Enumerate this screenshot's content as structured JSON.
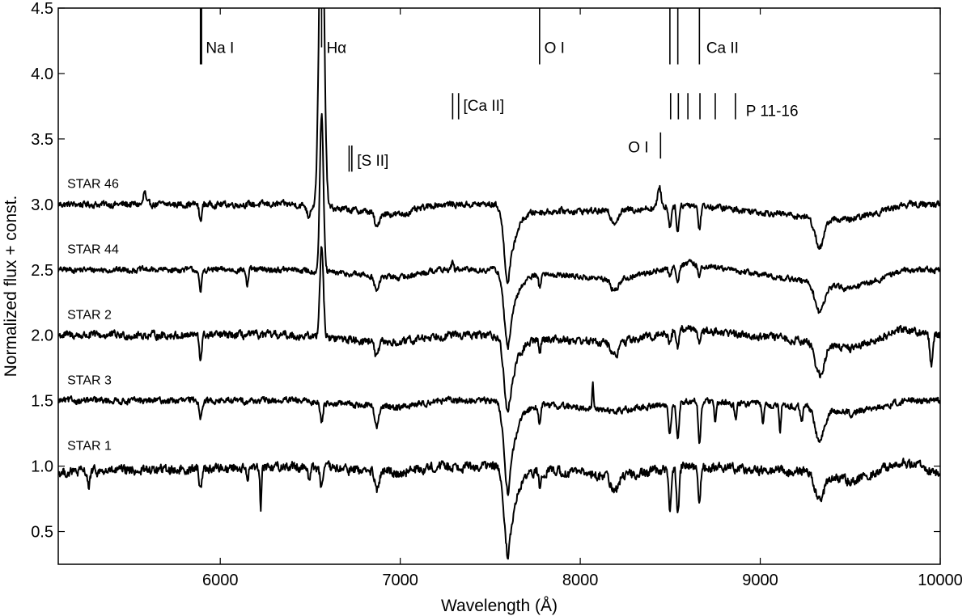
{
  "chart_data": {
    "type": "line",
    "xlabel": "Wavelength (Å)",
    "ylabel": "Normalized flux + const.",
    "xlim": [
      5100,
      10000
    ],
    "ylim": [
      0.25,
      4.5
    ],
    "x_ticks": [
      6000,
      7000,
      8000,
      9000,
      10000
    ],
    "y_ticks": [
      0.5,
      1.0,
      1.5,
      2.0,
      2.5,
      3.0,
      3.5,
      4.0,
      4.5
    ],
    "y_tick_labels": [
      "0.5",
      "1.0",
      "1.5",
      "2.0",
      "2.5",
      "3.0",
      "3.5",
      "4.0",
      "4.5"
    ],
    "grid": false,
    "line_color": "#000000",
    "series": [
      {
        "name": "STAR 46",
        "offset": 3.0,
        "features": [
          [
            5580,
            0.1,
            6
          ],
          [
            5890,
            -0.13,
            7
          ],
          [
            6490,
            -0.08,
            8
          ],
          [
            6563,
            2.6,
            14
          ],
          [
            6870,
            -0.12,
            12
          ],
          [
            7600,
            -0.6,
            22
          ],
          [
            8190,
            -0.08,
            20
          ],
          [
            8440,
            0.15,
            9
          ],
          [
            8498,
            -0.16,
            7
          ],
          [
            8542,
            -0.2,
            7
          ],
          [
            8662,
            -0.18,
            7
          ],
          [
            9330,
            -0.22,
            25
          ]
        ],
        "broad": [
          [
            5100,
            0.0
          ],
          [
            6400,
            0.0
          ],
          [
            7000,
            -0.08
          ],
          [
            7200,
            0.0
          ],
          [
            7600,
            0.0
          ],
          [
            7800,
            -0.05
          ],
          [
            8200,
            -0.05
          ],
          [
            8600,
            0.0
          ],
          [
            9300,
            -0.1
          ],
          [
            9500,
            -0.12
          ],
          [
            9800,
            0.0
          ],
          [
            10000,
            0.0
          ]
        ],
        "noise": 0.02
      },
      {
        "name": "STAR 44",
        "offset": 2.5,
        "features": [
          [
            5890,
            -0.18,
            7
          ],
          [
            6150,
            -0.12,
            6
          ],
          [
            6563,
            1.2,
            10
          ],
          [
            6870,
            -0.12,
            12
          ],
          [
            7290,
            0.06,
            6
          ],
          [
            7600,
            -0.6,
            22
          ],
          [
            7775,
            -0.1,
            6
          ],
          [
            8190,
            -0.08,
            20
          ],
          [
            8498,
            -0.08,
            7
          ],
          [
            8542,
            -0.12,
            7
          ],
          [
            8662,
            -0.1,
            7
          ],
          [
            9330,
            -0.22,
            25
          ]
        ],
        "broad": [
          [
            5100,
            0.0
          ],
          [
            6400,
            0.0
          ],
          [
            7000,
            -0.06
          ],
          [
            7200,
            0.0
          ],
          [
            7600,
            0.0
          ],
          [
            8200,
            -0.08
          ],
          [
            8600,
            0.05
          ],
          [
            9300,
            -0.1
          ],
          [
            9500,
            -0.15
          ],
          [
            9800,
            0.0
          ],
          [
            10000,
            0.0
          ]
        ],
        "noise": 0.018
      },
      {
        "name": "STAR 2",
        "offset": 2.0,
        "features": [
          [
            5890,
            -0.18,
            7
          ],
          [
            6563,
            0.7,
            10
          ],
          [
            6870,
            -0.12,
            12
          ],
          [
            7600,
            -0.6,
            22
          ],
          [
            7775,
            -0.1,
            6
          ],
          [
            8190,
            -0.1,
            20
          ],
          [
            8498,
            -0.08,
            7
          ],
          [
            8542,
            -0.12,
            7
          ],
          [
            8662,
            -0.1,
            7
          ],
          [
            9330,
            -0.25,
            25
          ],
          [
            9950,
            -0.25,
            8
          ]
        ],
        "broad": [
          [
            5100,
            0.0
          ],
          [
            6400,
            0.0
          ],
          [
            7000,
            -0.06
          ],
          [
            7200,
            0.0
          ],
          [
            7600,
            0.0
          ],
          [
            8200,
            -0.06
          ],
          [
            8600,
            0.05
          ],
          [
            9300,
            -0.05
          ],
          [
            9500,
            -0.1
          ],
          [
            9800,
            0.05
          ],
          [
            10000,
            0.0
          ]
        ],
        "noise": 0.025
      },
      {
        "name": "STAR 3",
        "offset": 1.5,
        "features": [
          [
            5890,
            -0.12,
            7
          ],
          [
            6563,
            -0.15,
            7
          ],
          [
            6870,
            -0.15,
            12
          ],
          [
            7600,
            -0.7,
            22
          ],
          [
            7775,
            -0.15,
            6
          ],
          [
            8070,
            0.2,
            4
          ],
          [
            8498,
            -0.25,
            7
          ],
          [
            8542,
            -0.3,
            7
          ],
          [
            8662,
            -0.3,
            7
          ],
          [
            8750,
            -0.15,
            6
          ],
          [
            8863,
            -0.12,
            6
          ],
          [
            9015,
            -0.15,
            6
          ],
          [
            9110,
            -0.22,
            5
          ],
          [
            9230,
            -0.12,
            6
          ],
          [
            9330,
            -0.25,
            25
          ]
        ],
        "broad": [
          [
            5100,
            0.0
          ],
          [
            6400,
            0.0
          ],
          [
            7000,
            -0.05
          ],
          [
            7200,
            0.0
          ],
          [
            7600,
            0.0
          ],
          [
            8200,
            -0.08
          ],
          [
            8600,
            0.0
          ],
          [
            9300,
            -0.05
          ],
          [
            9500,
            -0.1
          ],
          [
            9800,
            0.0
          ],
          [
            10000,
            0.0
          ]
        ],
        "noise": 0.02
      },
      {
        "name": "STAR 1",
        "offset": 1.0,
        "features": [
          [
            5270,
            -0.12,
            6
          ],
          [
            5890,
            -0.15,
            7
          ],
          [
            6150,
            -0.1,
            6
          ],
          [
            6225,
            -0.3,
            4
          ],
          [
            6495,
            -0.1,
            6
          ],
          [
            6563,
            -0.15,
            7
          ],
          [
            6870,
            -0.15,
            12
          ],
          [
            7600,
            -0.7,
            22
          ],
          [
            7775,
            -0.12,
            6
          ],
          [
            8190,
            -0.12,
            20
          ],
          [
            8498,
            -0.3,
            7
          ],
          [
            8542,
            -0.35,
            7
          ],
          [
            8662,
            -0.3,
            7
          ],
          [
            9330,
            -0.2,
            25
          ]
        ],
        "broad": [
          [
            5100,
            -0.05
          ],
          [
            6400,
            0.0
          ],
          [
            7000,
            -0.05
          ],
          [
            7200,
            0.0
          ],
          [
            7600,
            0.0
          ],
          [
            8200,
            -0.08
          ],
          [
            8600,
            0.0
          ],
          [
            9300,
            -0.05
          ],
          [
            9500,
            -0.12
          ],
          [
            9800,
            0.03
          ],
          [
            10000,
            -0.05
          ]
        ],
        "noise": 0.03
      }
    ],
    "annotations": [
      {
        "label": "Na I",
        "x": [
          5893
        ],
        "y_top": 4.5,
        "y_bottom": 4.07,
        "thick": true,
        "text_x": 5920,
        "text_y": 4.2
      },
      {
        "label": "Hα",
        "x": [
          6563
        ],
        "y_top": 4.5,
        "y_bottom": 4.2,
        "thick": false,
        "text_x": 6590,
        "text_y": 4.2
      },
      {
        "label": "O I",
        "x": [
          7774
        ],
        "y_top": 4.5,
        "y_bottom": 4.07,
        "thick": false,
        "text_x": 7800,
        "text_y": 4.2
      },
      {
        "label": "Ca II",
        "x": [
          8498,
          8542,
          8662
        ],
        "y_top": 4.5,
        "y_bottom": 4.07,
        "thick": false,
        "text_x": 8700,
        "text_y": 4.2
      },
      {
        "label": "[Ca II]",
        "x": [
          7291,
          7324
        ],
        "y_top": 3.85,
        "y_bottom": 3.65,
        "thick": false,
        "text_x": 7350,
        "text_y": 3.76
      },
      {
        "label": "P 11-16",
        "x": [
          8502,
          8545,
          8598,
          8665,
          8750,
          8862
        ],
        "y_top": 3.85,
        "y_bottom": 3.65,
        "thick": false,
        "text_x": 8920,
        "text_y": 3.72
      },
      {
        "label": "O I",
        "x": [
          8446
        ],
        "y_top": 3.55,
        "y_bottom": 3.35,
        "thick": false,
        "text_x": 8380,
        "text_y": 3.44,
        "anchor": "end"
      },
      {
        "label": "[S II]",
        "x": [
          6716,
          6731
        ],
        "y_top": 3.45,
        "y_bottom": 3.25,
        "thick": false,
        "text_x": 6760,
        "text_y": 3.34
      }
    ]
  }
}
